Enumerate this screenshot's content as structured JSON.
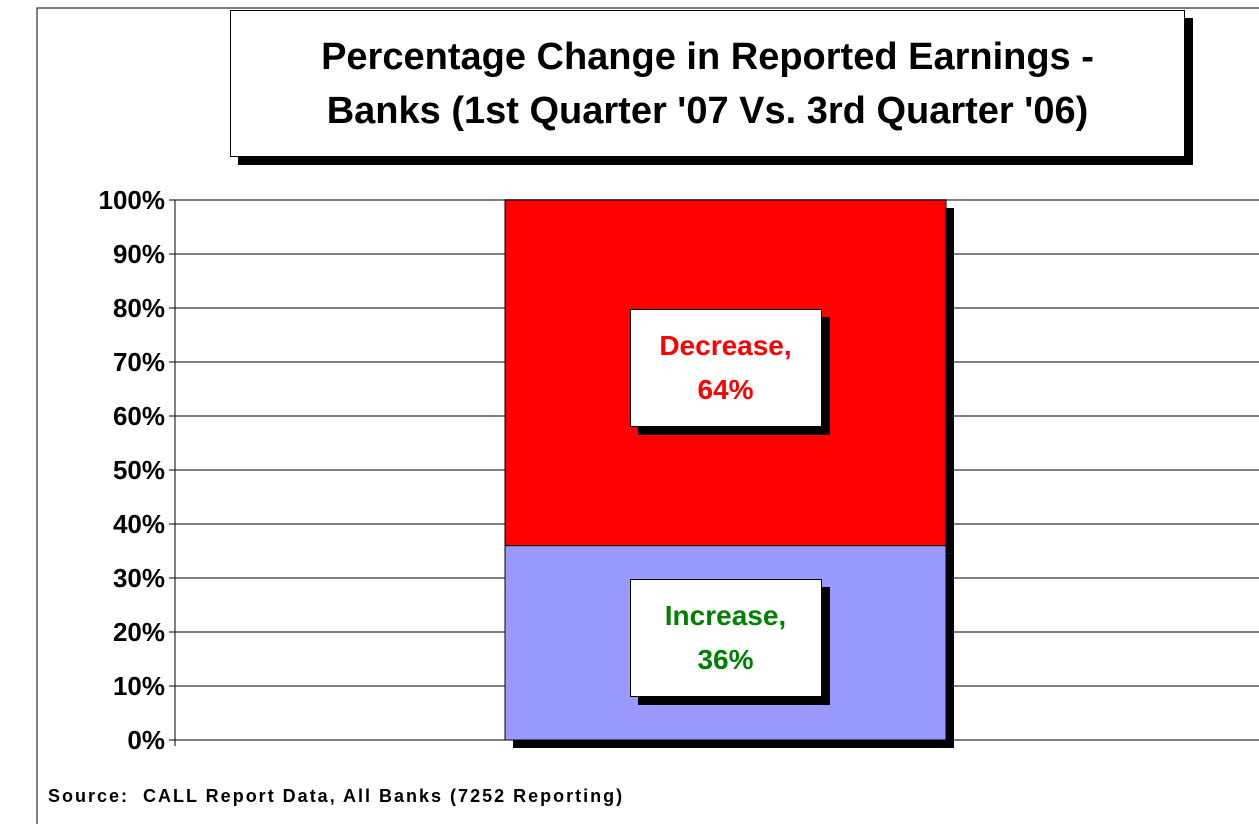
{
  "chart_data": {
    "type": "stacked_bar",
    "title": "Percentage Change in Reported Earnings -\nBanks (1st Quarter '07 Vs. 3rd Quarter '06)",
    "categories": [
      null
    ],
    "series": [
      {
        "name": "Increase",
        "color": "#9999ff",
        "label_color": "#008000",
        "values": [
          36
        ],
        "value_labels": [
          "Increase,\n36%"
        ]
      },
      {
        "name": "Decrease",
        "color": "#ff0000",
        "label_color": "#ff0000",
        "values": [
          64
        ],
        "value_labels": [
          "Decrease,\n64%"
        ]
      }
    ],
    "ylim": [
      0,
      100
    ],
    "yticks": [
      {
        "value": 0,
        "label": "0%"
      },
      {
        "value": 10,
        "label": "10%"
      },
      {
        "value": 20,
        "label": "20%"
      },
      {
        "value": 30,
        "label": "30%"
      },
      {
        "value": 40,
        "label": "40%"
      },
      {
        "value": 50,
        "label": "50%"
      },
      {
        "value": 60,
        "label": "60%"
      },
      {
        "value": 70,
        "label": "70%"
      },
      {
        "value": 80,
        "label": "80%"
      },
      {
        "value": 90,
        "label": "90%"
      },
      {
        "value": 100,
        "label": "100%"
      }
    ],
    "grid": true,
    "source": "Source:  CALL Report Data, All Banks (7252 Reporting)"
  }
}
